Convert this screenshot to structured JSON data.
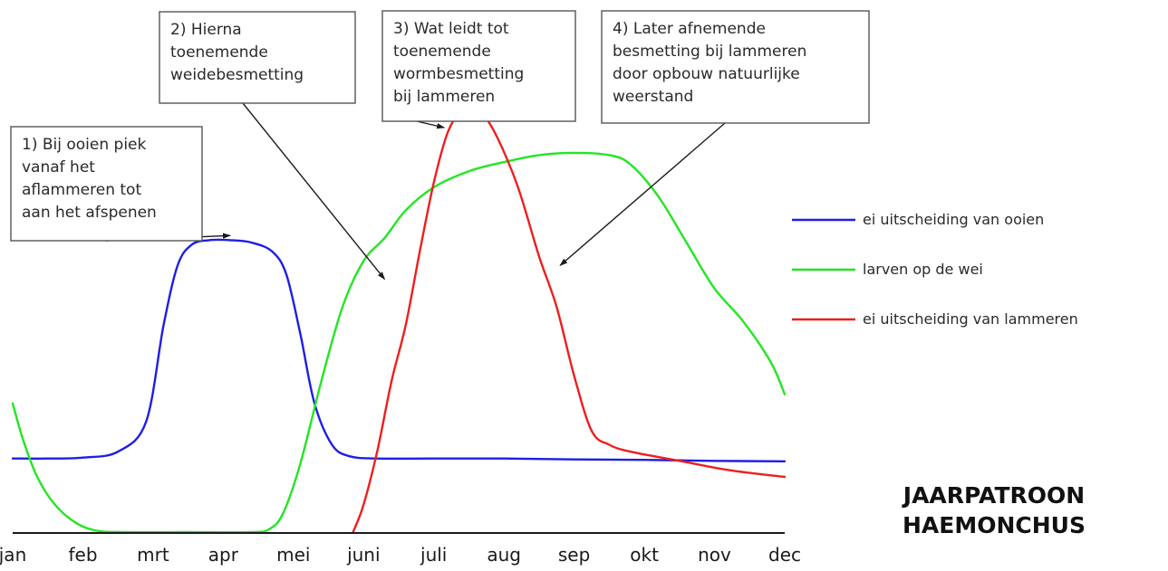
{
  "chart_data": {
    "type": "line",
    "title_lines": [
      "JAARPATROON",
      "HAEMONCHUS"
    ],
    "categories": [
      "jan",
      "feb",
      "mrt",
      "apr",
      "mei",
      "juni",
      "juli",
      "aug",
      "sep",
      "okt",
      "nov",
      "dec"
    ],
    "ylim": [
      0,
      100
    ],
    "grid": false,
    "legend_position": "right",
    "series": [
      {
        "name": "ei uitscheiding van ooien",
        "color": "#1e1ee6",
        "points": [
          [
            0.0,
            16
          ],
          [
            0.5,
            16
          ],
          [
            1.0,
            16.2
          ],
          [
            1.5,
            17.5
          ],
          [
            1.9,
            24
          ],
          [
            2.15,
            45
          ],
          [
            2.35,
            58
          ],
          [
            2.55,
            62.5
          ],
          [
            2.8,
            63.5
          ],
          [
            3.1,
            63.5
          ],
          [
            3.4,
            63
          ],
          [
            3.7,
            61
          ],
          [
            3.9,
            56
          ],
          [
            4.1,
            43
          ],
          [
            4.3,
            28
          ],
          [
            4.55,
            19
          ],
          [
            4.8,
            16.5
          ],
          [
            5.2,
            16
          ],
          [
            6.0,
            16
          ],
          [
            7.0,
            16
          ],
          [
            8.0,
            15.8
          ],
          [
            9.0,
            15.7
          ],
          [
            10.0,
            15.5
          ],
          [
            11.0,
            15.4
          ]
        ]
      },
      {
        "name": "larven op de wei",
        "color": "#22e622",
        "points": [
          [
            0.0,
            28
          ],
          [
            0.15,
            20
          ],
          [
            0.35,
            12
          ],
          [
            0.6,
            6
          ],
          [
            0.9,
            2
          ],
          [
            1.2,
            0.3
          ],
          [
            1.6,
            0
          ],
          [
            2.5,
            0
          ],
          [
            3.4,
            0
          ],
          [
            3.65,
            0.6
          ],
          [
            3.85,
            4
          ],
          [
            4.1,
            15
          ],
          [
            4.4,
            33
          ],
          [
            4.7,
            49
          ],
          [
            5.0,
            59
          ],
          [
            5.3,
            64
          ],
          [
            5.6,
            70
          ],
          [
            6.0,
            75
          ],
          [
            6.5,
            78.5
          ],
          [
            7.0,
            80.5
          ],
          [
            7.5,
            82
          ],
          [
            8.0,
            82.5
          ],
          [
            8.5,
            82
          ],
          [
            8.8,
            80
          ],
          [
            9.2,
            73
          ],
          [
            9.6,
            63
          ],
          [
            10.0,
            53
          ],
          [
            10.4,
            46
          ],
          [
            10.8,
            37
          ],
          [
            11.0,
            30
          ]
        ]
      },
      {
        "name": "ei uitscheiding van lammeren",
        "color": "#ee1e1e",
        "points": [
          [
            4.85,
            0
          ],
          [
            5.0,
            6
          ],
          [
            5.2,
            18
          ],
          [
            5.4,
            33
          ],
          [
            5.6,
            45
          ],
          [
            5.8,
            61
          ],
          [
            6.0,
            76
          ],
          [
            6.2,
            87
          ],
          [
            6.4,
            92
          ],
          [
            6.5,
            93
          ],
          [
            6.65,
            92
          ],
          [
            6.9,
            86
          ],
          [
            7.2,
            75
          ],
          [
            7.5,
            60
          ],
          [
            7.75,
            49
          ],
          [
            8.0,
            34
          ],
          [
            8.25,
            22
          ],
          [
            8.5,
            19
          ],
          [
            8.8,
            17.5
          ],
          [
            9.5,
            15.5
          ],
          [
            10.2,
            13.5
          ],
          [
            11.0,
            12
          ]
        ]
      }
    ],
    "annotations": [
      {
        "lines": [
          "1) Bij ooien piek",
          "vanaf het",
          "aflammeren tot",
          "aan het afspenen"
        ],
        "target": [
          3.1,
          64.5
        ]
      },
      {
        "lines": [
          "2) Hierna",
          "toenemende",
          "weidebesmetting"
        ],
        "target": [
          5.3,
          55
        ]
      },
      {
        "lines": [
          "3) Wat leidt tot",
          "toenemende",
          "wormbesmetting",
          "bij lammeren"
        ],
        "target": [
          6.15,
          88
        ]
      },
      {
        "lines": [
          "4) Later afnemende",
          "besmetting bij lammeren",
          "door opbouw natuurlijke",
          "weerstand"
        ],
        "target": [
          7.8,
          58
        ]
      }
    ]
  }
}
